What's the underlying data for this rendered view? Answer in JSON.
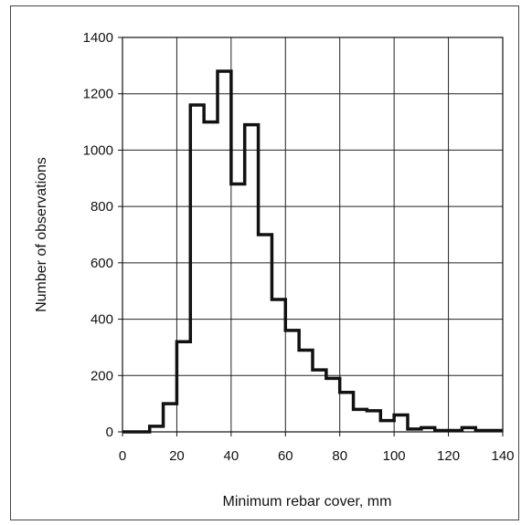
{
  "chart_data": {
    "type": "histogram",
    "title": "",
    "xlabel": "Minimum rebar cover, mm",
    "ylabel": "Number of observations",
    "xlim": [
      0,
      140
    ],
    "ylim": [
      0,
      1400
    ],
    "xticks": [
      0,
      20,
      40,
      60,
      80,
      100,
      120,
      140
    ],
    "yticks": [
      0,
      200,
      400,
      600,
      800,
      1000,
      1200,
      1400
    ],
    "grid": true,
    "bin_width": 5,
    "bins": [
      {
        "x0": 0,
        "x1": 5,
        "count": 0
      },
      {
        "x0": 5,
        "x1": 10,
        "count": 0
      },
      {
        "x0": 10,
        "x1": 15,
        "count": 20
      },
      {
        "x0": 15,
        "x1": 20,
        "count": 100
      },
      {
        "x0": 20,
        "x1": 25,
        "count": 320
      },
      {
        "x0": 25,
        "x1": 30,
        "count": 1160
      },
      {
        "x0": 30,
        "x1": 35,
        "count": 1100
      },
      {
        "x0": 35,
        "x1": 40,
        "count": 1280
      },
      {
        "x0": 40,
        "x1": 45,
        "count": 880
      },
      {
        "x0": 45,
        "x1": 50,
        "count": 1090
      },
      {
        "x0": 50,
        "x1": 55,
        "count": 700
      },
      {
        "x0": 55,
        "x1": 60,
        "count": 470
      },
      {
        "x0": 60,
        "x1": 65,
        "count": 360
      },
      {
        "x0": 65,
        "x1": 70,
        "count": 290
      },
      {
        "x0": 70,
        "x1": 75,
        "count": 220
      },
      {
        "x0": 75,
        "x1": 80,
        "count": 190
      },
      {
        "x0": 80,
        "x1": 85,
        "count": 140
      },
      {
        "x0": 85,
        "x1": 90,
        "count": 80
      },
      {
        "x0": 90,
        "x1": 95,
        "count": 75
      },
      {
        "x0": 95,
        "x1": 100,
        "count": 40
      },
      {
        "x0": 100,
        "x1": 105,
        "count": 60
      },
      {
        "x0": 105,
        "x1": 110,
        "count": 10
      },
      {
        "x0": 110,
        "x1": 115,
        "count": 15
      },
      {
        "x0": 115,
        "x1": 120,
        "count": 5
      },
      {
        "x0": 120,
        "x1": 125,
        "count": 5
      },
      {
        "x0": 125,
        "x1": 130,
        "count": 15
      },
      {
        "x0": 130,
        "x1": 135,
        "count": 5
      },
      {
        "x0": 135,
        "x1": 140,
        "count": 5
      }
    ]
  },
  "colors": {
    "line": "#111111",
    "grid": "#222222",
    "axis": "#111111",
    "frame": "#444444"
  }
}
